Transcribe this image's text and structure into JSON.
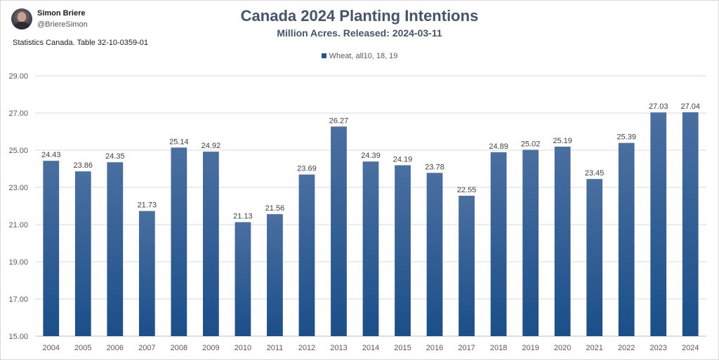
{
  "author": {
    "name": "Simon Briere",
    "handle": "@BriereSimon"
  },
  "source_note": "Statistics Canada. Table 32-10-0359-01",
  "chart_data": {
    "type": "bar",
    "title": "Canada 2024 Planting Intentions",
    "subtitle": "Million Acres. Released: 2024-03-11",
    "xlabel": "",
    "ylabel": "",
    "legend_position": "top-center",
    "grid": true,
    "ylim": [
      15,
      29
    ],
    "yticks": [
      "15.00",
      "17.00",
      "19.00",
      "21.00",
      "23.00",
      "25.00",
      "27.00",
      "29.00"
    ],
    "categories": [
      "2004",
      "2005",
      "2006",
      "2007",
      "2008",
      "2009",
      "2010",
      "2011",
      "2012",
      "2013",
      "2014",
      "2015",
      "2016",
      "2017",
      "2018",
      "2019",
      "2020",
      "2021",
      "2022",
      "2023",
      "2024"
    ],
    "series": [
      {
        "name": "Wheat, all10, 18, 19",
        "values": [
          24.43,
          23.86,
          24.35,
          21.73,
          25.14,
          24.92,
          21.13,
          21.56,
          23.69,
          26.27,
          24.39,
          24.19,
          23.78,
          22.55,
          24.89,
          25.02,
          25.19,
          23.45,
          25.39,
          27.03,
          27.04
        ],
        "labels": [
          "24.43",
          "23.86",
          "24.35",
          "21.73",
          "25.14",
          "24.92",
          "21.13",
          "21.56",
          "23.69",
          "26.27",
          "24.39",
          "24.19",
          "23.78",
          "22.55",
          "24.89",
          "25.02",
          "25.19",
          "23.45",
          "25.39",
          "27.03",
          "27.04"
        ]
      }
    ],
    "colors": {
      "bar_top": "#4a6fa0",
      "bar_bottom": "#1a4f8a",
      "legend": "#1f5591",
      "title": "#44546a",
      "grid": "#d9d9d9"
    }
  }
}
